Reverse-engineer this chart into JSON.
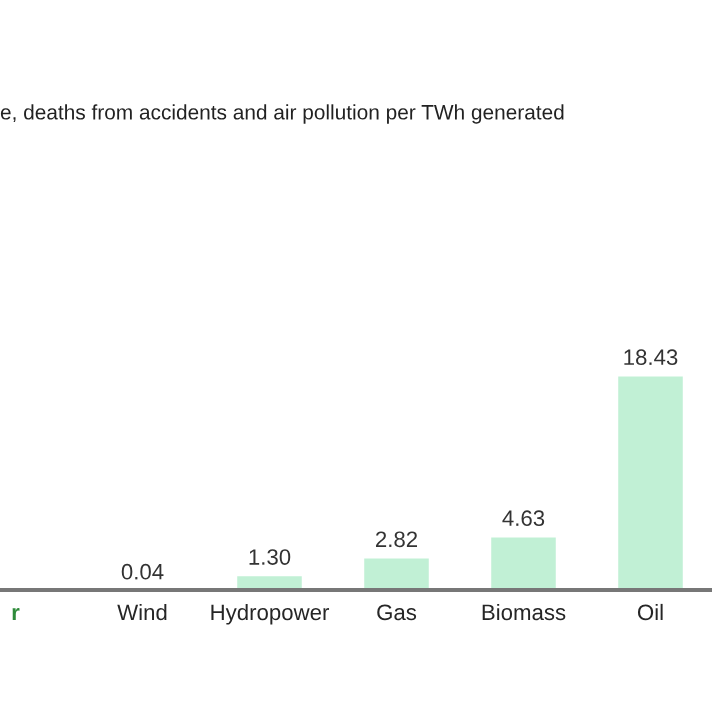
{
  "chart_data": {
    "type": "bar",
    "title": "e, deaths from accidents and air pollution per TWh generated",
    "categories": [
      "r",
      "Wind",
      "Hydropower",
      "Gas",
      "Biomass",
      "Oil"
    ],
    "values": [
      null,
      0.04,
      1.3,
      2.82,
      4.63,
      18.43
    ],
    "value_labels": [
      null,
      "0.04",
      "1.30",
      "2.82",
      "4.63",
      "18.43"
    ],
    "color": "#c1f0d5",
    "grid": false,
    "legend": false
  }
}
